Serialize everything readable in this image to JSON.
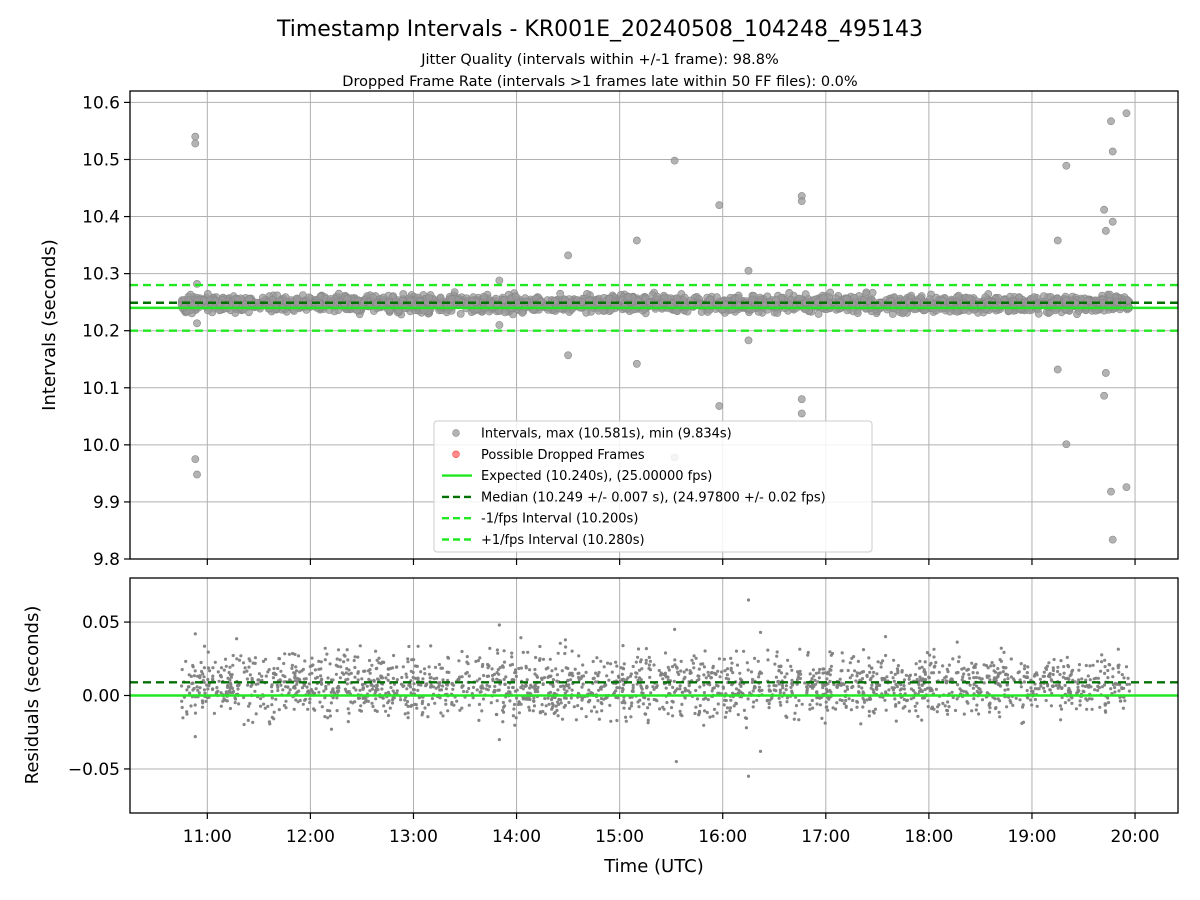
{
  "title": "Timestamp Intervals - KR001E_20240508_104248_495143",
  "subtitle1": "Jitter Quality (intervals within +/-1 frame): 98.8%",
  "subtitle2": "Dropped Frame Rate (intervals >1 frames late within 50 FF files): 0.0%",
  "colors": {
    "points": "#7f7f7f",
    "points_top": "#999999",
    "expected": "#22e822",
    "median": "#007000",
    "interval": "#22e822",
    "dropped": "#ff4040",
    "grid": "#b0b0b0"
  },
  "chart_data": [
    {
      "type": "scatter",
      "xlabel": "",
      "ylabel": "Intervals (seconds)",
      "xlim": [
        "10:15",
        "20:25"
      ],
      "ylim": [
        9.8,
        10.62
      ],
      "yticks": [
        "9.8",
        "9.9",
        "10.0",
        "10.1",
        "10.2",
        "10.3",
        "10.4",
        "10.5",
        "10.6"
      ],
      "grid": true,
      "legend_position": "lower-center",
      "legend": [
        {
          "key": "intervals",
          "label": "Intervals, max (10.581s), min (9.834s)",
          "kind": "marker"
        },
        {
          "key": "dropped",
          "label": "Possible Dropped Frames",
          "kind": "marker"
        },
        {
          "key": "expected",
          "label": "Expected (10.240s), (25.00000 fps)",
          "kind": "solid"
        },
        {
          "key": "median",
          "label": "Median (10.249 +/- 0.007 s), (24.97800 +/- 0.02 fps)",
          "kind": "dashed"
        },
        {
          "key": "minus",
          "label": "-1/fps Interval (10.200s)",
          "kind": "dashed"
        },
        {
          "key": "plus",
          "label": "+1/fps Interval (10.280s)",
          "kind": "dashed"
        }
      ],
      "lines": {
        "expected": 10.24,
        "median": 10.249,
        "minus": 10.2,
        "plus": 10.28
      },
      "time_range": [
        "10:45",
        "19:57"
      ],
      "band": {
        "center": 10.247,
        "spread": 0.007
      },
      "outliers": [
        {
          "x": "10:53",
          "y": 10.54
        },
        {
          "x": "10:53",
          "y": 10.528
        },
        {
          "x": "10:53",
          "y": 9.975
        },
        {
          "x": "10:54",
          "y": 9.948
        },
        {
          "x": "10:54",
          "y": 10.282
        },
        {
          "x": "10:54",
          "y": 10.213
        },
        {
          "x": "13:50",
          "y": 10.288
        },
        {
          "x": "13:50",
          "y": 10.21
        },
        {
          "x": "14:30",
          "y": 10.332
        },
        {
          "x": "14:30",
          "y": 10.157
        },
        {
          "x": "15:10",
          "y": 10.358
        },
        {
          "x": "15:10",
          "y": 10.142
        },
        {
          "x": "15:32",
          "y": 10.498
        },
        {
          "x": "15:32",
          "y": 9.978
        },
        {
          "x": "15:58",
          "y": 10.42
        },
        {
          "x": "15:58",
          "y": 10.068
        },
        {
          "x": "16:15",
          "y": 10.305
        },
        {
          "x": "16:15",
          "y": 10.183
        },
        {
          "x": "16:46",
          "y": 10.436
        },
        {
          "x": "16:46",
          "y": 10.427
        },
        {
          "x": "16:46",
          "y": 10.08
        },
        {
          "x": "16:46",
          "y": 10.055
        },
        {
          "x": "19:15",
          "y": 10.358
        },
        {
          "x": "19:15",
          "y": 10.132
        },
        {
          "x": "19:20",
          "y": 10.489
        },
        {
          "x": "19:20",
          "y": 10.001
        },
        {
          "x": "19:42",
          "y": 10.412
        },
        {
          "x": "19:43",
          "y": 10.375
        },
        {
          "x": "19:43",
          "y": 10.126
        },
        {
          "x": "19:42",
          "y": 10.086
        },
        {
          "x": "19:46",
          "y": 10.567
        },
        {
          "x": "19:47",
          "y": 10.514
        },
        {
          "x": "19:47",
          "y": 10.391
        },
        {
          "x": "19:46",
          "y": 9.918
        },
        {
          "x": "19:47",
          "y": 9.834
        },
        {
          "x": "19:55",
          "y": 10.581
        },
        {
          "x": "19:55",
          "y": 9.926
        }
      ]
    },
    {
      "type": "scatter",
      "xlabel": "Time (UTC)",
      "ylabel": "Residuals (seconds)",
      "xlim": [
        "10:15",
        "20:25"
      ],
      "ylim": [
        -0.08,
        0.08
      ],
      "yticks": [
        "−0.05",
        "0.00",
        "0.05"
      ],
      "xticks": [
        "11:00",
        "12:00",
        "13:00",
        "14:00",
        "15:00",
        "16:00",
        "17:00",
        "18:00",
        "19:00",
        "20:00"
      ],
      "grid": true,
      "lines": {
        "expected": 0.0,
        "median": 0.009
      },
      "band": {
        "center": 0.007,
        "spread": 0.012
      },
      "outliers": [
        {
          "x": "10:53",
          "y": 0.042
        },
        {
          "x": "10:53",
          "y": -0.028
        },
        {
          "x": "13:50",
          "y": 0.048
        },
        {
          "x": "13:50",
          "y": -0.03
        },
        {
          "x": "15:32",
          "y": 0.045
        },
        {
          "x": "15:33",
          "y": -0.045
        },
        {
          "x": "16:15",
          "y": 0.065
        },
        {
          "x": "16:15",
          "y": -0.055
        },
        {
          "x": "16:22",
          "y": 0.043
        },
        {
          "x": "16:22",
          "y": -0.038
        }
      ]
    }
  ]
}
